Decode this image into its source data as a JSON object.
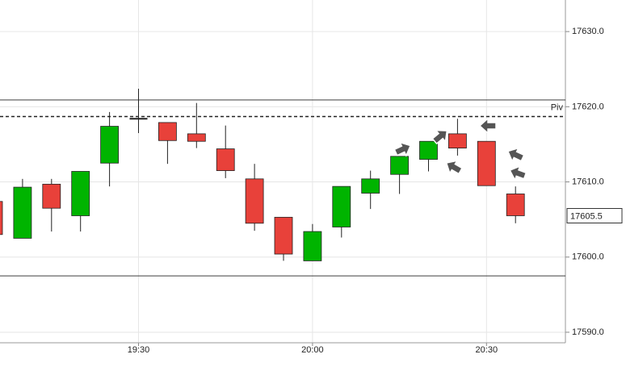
{
  "chart_data": {
    "type": "candlestick",
    "categories": [
      null,
      null,
      null,
      null,
      null,
      "19:30",
      null,
      null,
      null,
      null,
      null,
      "20:00",
      null,
      null,
      null,
      null,
      null,
      "20:30",
      null
    ],
    "open": [
      17607.4,
      17602.5,
      17609.7,
      17605.5,
      17612.5,
      17618.4,
      17617.9,
      17616.4,
      17614.4,
      17610.4,
      17605.3,
      17599.5,
      17604.0,
      17608.5,
      17611.0,
      17613.0,
      17616.4,
      17615.4,
      17608.4
    ],
    "high": [
      17607.4,
      17610.4,
      17610.4,
      17611.4,
      17619.3,
      17622.4,
      17617.9,
      17620.5,
      17617.5,
      17612.4,
      17605.3,
      17604.4,
      17609.4,
      17611.5,
      17613.4,
      17615.4,
      17618.4,
      17615.4,
      17609.4
    ],
    "low": [
      17603.0,
      17602.5,
      17603.4,
      17603.4,
      17609.4,
      17616.5,
      17612.4,
      17614.5,
      17610.5,
      17603.5,
      17599.5,
      17599.5,
      17602.6,
      17606.4,
      17608.4,
      17611.4,
      17613.5,
      17609.5,
      17604.5
    ],
    "close": [
      17603.0,
      17609.3,
      17606.5,
      17611.4,
      17617.4,
      17618.4,
      17615.5,
      17615.4,
      17611.5,
      17604.5,
      17600.4,
      17603.4,
      17609.4,
      17610.4,
      17613.4,
      17615.4,
      17614.5,
      17609.5,
      17605.5
    ],
    "up_color": "#00b400",
    "down_color": "#e8413a",
    "ylim": [
      17588.6,
      17634.2
    ],
    "yticks": [
      {
        "value": 17590,
        "label": "17590.0"
      },
      {
        "value": 17600,
        "label": "17600.0"
      },
      {
        "value": 17610,
        "label": "17610.0"
      },
      {
        "value": 17620,
        "label": "17620.0"
      },
      {
        "value": 17630,
        "label": "17630.0"
      }
    ],
    "grid": true,
    "lines": [
      {
        "value": 17620.9,
        "style": "solid"
      },
      {
        "value": 17618.7,
        "style": "dashed",
        "label": "Piv"
      },
      {
        "value": 17597.5,
        "style": "solid"
      }
    ],
    "last_price": 17605.5
  }
}
